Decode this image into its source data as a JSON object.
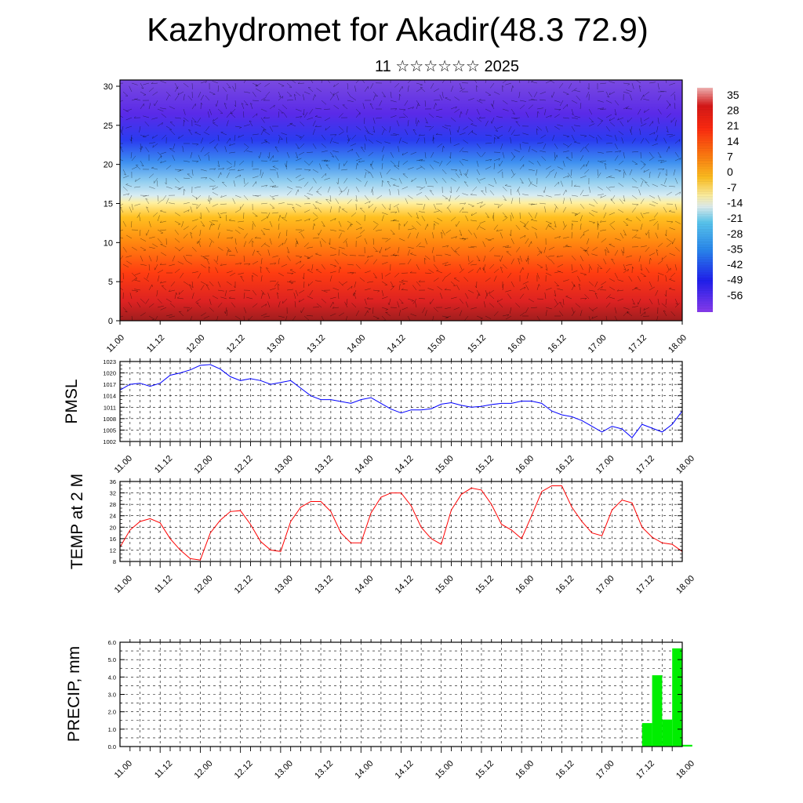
{
  "header": {
    "title": "Kazhydromet for Akadir(48.3 72.9)",
    "subtitle": "11 ☆☆☆☆☆☆ 2025"
  },
  "time_ticks": [
    "11.00",
    "11.12",
    "12.00",
    "12.12",
    "13.00",
    "13.12",
    "14.00",
    "14.12",
    "15.00",
    "15.12",
    "16.00",
    "16.12",
    "17.00",
    "17.12",
    "18.00"
  ],
  "chart_data": [
    {
      "type": "heatmap",
      "title": "",
      "xlabel": "",
      "ylabel": "",
      "x_categories": [
        "11.00",
        "11.12",
        "12.00",
        "12.12",
        "13.00",
        "13.12",
        "14.00",
        "14.12",
        "15.00",
        "15.12",
        "16.00",
        "16.12",
        "17.00",
        "17.12",
        "18.00"
      ],
      "y_ticks": [
        0,
        5,
        10,
        15,
        20,
        25,
        30
      ],
      "ylim": [
        0,
        30.8
      ],
      "colorbar_labels": [
        "35",
        "28",
        "21",
        "14",
        "7",
        "0",
        "-7",
        "-14",
        "-21",
        "-28",
        "-35",
        "-42",
        "-49",
        "-56"
      ],
      "colorbar_range": [
        -63,
        42
      ],
      "overlay": "wind vectors"
    },
    {
      "type": "line",
      "ylabel": "PMSL",
      "color": "#0000ff",
      "ylim": [
        1002,
        1023
      ],
      "y_ticks": [
        1002,
        1005,
        1008,
        1011,
        1014,
        1017,
        1020,
        1023
      ],
      "x_step_hours": 3,
      "values": [
        1015.5,
        1017,
        1017.3,
        1016.5,
        1017.3,
        1019.4,
        1020,
        1020.8,
        1022,
        1022.2,
        1021,
        1019,
        1018,
        1018.5,
        1018,
        1017,
        1017.5,
        1018,
        1016,
        1014,
        1013,
        1013,
        1012.5,
        1012,
        1013,
        1013.5,
        1012,
        1010.5,
        1009.5,
        1010.3,
        1010.3,
        1010.6,
        1011.8,
        1012.2,
        1011.5,
        1011,
        1011.2,
        1011.7,
        1012,
        1012,
        1012.6,
        1012.6,
        1012,
        1010,
        1009,
        1008.5,
        1007.5,
        1006,
        1004.5,
        1006,
        1005.3,
        1003,
        1006.5,
        1005.5,
        1004.5,
        1006.5,
        1010
      ]
    },
    {
      "type": "line",
      "ylabel": "TEMP at 2 M",
      "color": "#ff0000",
      "ylim": [
        8,
        36
      ],
      "y_ticks": [
        8,
        12,
        16,
        20,
        24,
        28,
        32,
        36
      ],
      "x_step_hours": 3,
      "values": [
        13,
        19,
        22,
        23,
        21.5,
        16,
        12,
        9,
        8.5,
        18,
        22.5,
        25.5,
        25.8,
        21,
        15,
        12,
        11.5,
        22,
        27,
        29,
        29,
        25.5,
        18,
        14.5,
        14.5,
        25,
        30.5,
        32,
        32,
        27.5,
        20,
        16,
        14,
        26,
        31.5,
        33.7,
        33,
        28,
        21,
        19,
        16,
        24,
        32.5,
        34.5,
        34.5,
        27,
        22,
        18,
        17,
        26,
        29.5,
        28.5,
        20,
        16.5,
        14.5,
        14,
        11.5
      ]
    },
    {
      "type": "bar",
      "ylabel": "PRECIP, mm",
      "color": "#00ee00",
      "ylim": [
        0,
        6
      ],
      "y_ticks": [
        "0.0",
        "1.0",
        "2.0",
        "3.0",
        "4.0",
        "5.0",
        "6.0"
      ],
      "bar_width_hours": 3,
      "bars": [
        {
          "start_hour": 156,
          "value": 1.35
        },
        {
          "start_hour": 159,
          "value": 4.1
        },
        {
          "start_hour": 162,
          "value": 1.55
        },
        {
          "start_hour": 165,
          "value": 5.65
        },
        {
          "start_hour": 168,
          "value": 0.1
        }
      ]
    }
  ]
}
